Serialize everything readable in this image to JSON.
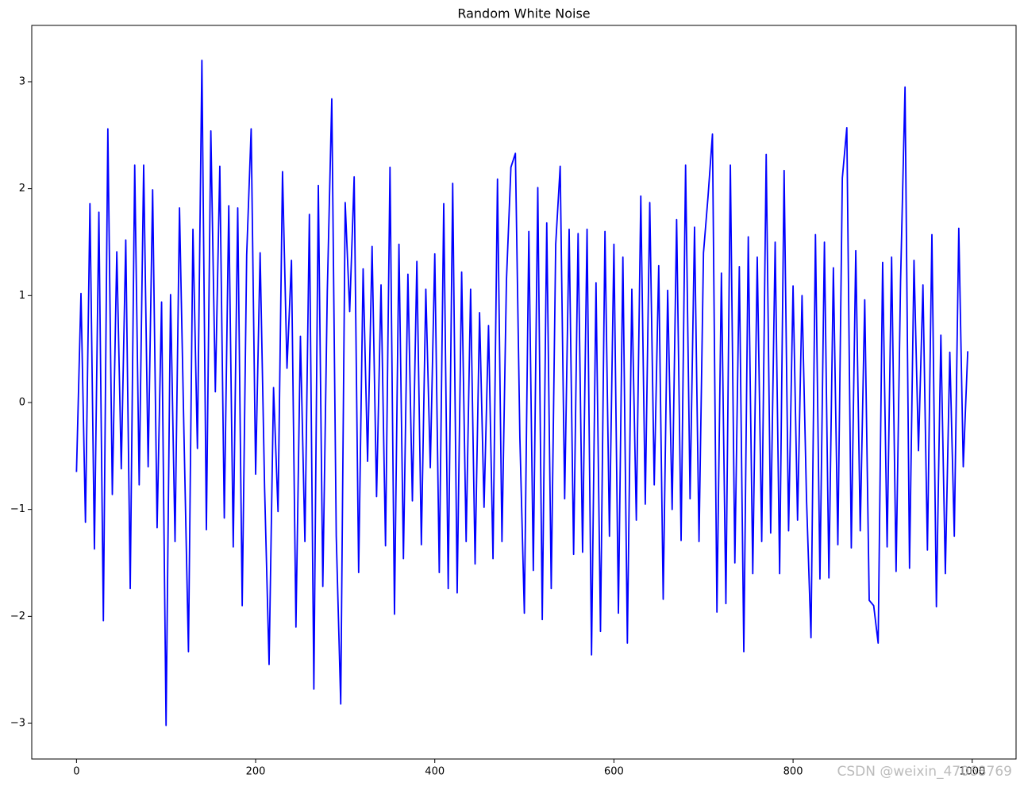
{
  "chart_data": {
    "type": "line",
    "title": "Random White Noise",
    "x": [
      0,
      5,
      10,
      15,
      20,
      25,
      30,
      35,
      40,
      45,
      50,
      55,
      60,
      65,
      70,
      75,
      80,
      85,
      90,
      95,
      100,
      105,
      110,
      115,
      120,
      125,
      130,
      135,
      140,
      145,
      150,
      155,
      160,
      165,
      170,
      175,
      180,
      185,
      190,
      195,
      200,
      205,
      210,
      215,
      220,
      225,
      230,
      235,
      240,
      245,
      250,
      255,
      260,
      265,
      270,
      275,
      280,
      285,
      290,
      295,
      300,
      305,
      310,
      315,
      320,
      325,
      330,
      335,
      340,
      345,
      350,
      355,
      360,
      365,
      370,
      375,
      380,
      385,
      390,
      395,
      400,
      405,
      410,
      415,
      420,
      425,
      430,
      435,
      440,
      445,
      450,
      455,
      460,
      465,
      470,
      475,
      480,
      485,
      490,
      495,
      500,
      505,
      510,
      515,
      520,
      525,
      530,
      535,
      540,
      545,
      550,
      555,
      560,
      565,
      570,
      575,
      580,
      585,
      590,
      595,
      600,
      605,
      610,
      615,
      620,
      625,
      630,
      635,
      640,
      645,
      650,
      655,
      660,
      665,
      670,
      675,
      680,
      685,
      690,
      695,
      700,
      705,
      710,
      715,
      720,
      725,
      730,
      735,
      740,
      745,
      750,
      755,
      760,
      765,
      770,
      775,
      780,
      785,
      790,
      795,
      800,
      805,
      810,
      815,
      820,
      825,
      830,
      835,
      840,
      845,
      850,
      855,
      860,
      865,
      870,
      875,
      880,
      885,
      890,
      895,
      900,
      905,
      910,
      915,
      920,
      925,
      930,
      935,
      940,
      945,
      950,
      955,
      960,
      965,
      970,
      975,
      980,
      985,
      990,
      995
    ],
    "values": [
      -0.65,
      1.02,
      -1.12,
      1.86,
      -1.37,
      1.78,
      -2.04,
      2.56,
      -0.86,
      1.41,
      -0.62,
      1.52,
      -1.74,
      2.22,
      -0.77,
      2.22,
      -0.6,
      1.99,
      -1.17,
      0.94,
      -3.02,
      1.01,
      -1.3,
      1.82,
      -0.3,
      -2.33,
      1.62,
      -0.43,
      3.2,
      -1.19,
      2.54,
      0.1,
      2.21,
      -1.08,
      1.84,
      -1.35,
      1.82,
      -1.9,
      1.38,
      2.56,
      -0.67,
      1.4,
      -0.8,
      -2.45,
      0.14,
      -1.02,
      2.16,
      0.32,
      1.33,
      -2.1,
      0.62,
      -1.3,
      1.76,
      -2.68,
      2.03,
      -1.72,
      1.04,
      2.84,
      -1.25,
      -2.82,
      1.87,
      0.85,
      2.11,
      -1.59,
      1.25,
      -0.55,
      1.46,
      -0.88,
      1.1,
      -1.34,
      2.2,
      -1.98,
      1.48,
      -1.46,
      1.2,
      -0.92,
      1.32,
      -1.33,
      1.06,
      -0.61,
      1.39,
      -1.59,
      1.86,
      -1.74,
      2.05,
      -1.78,
      1.22,
      -1.3,
      1.06,
      -1.51,
      0.84,
      -0.98,
      0.72,
      -1.46,
      2.09,
      -1.3,
      1.14,
      2.2,
      2.33,
      -0.33,
      -1.97,
      1.6,
      -1.57,
      2.01,
      -2.03,
      1.68,
      -1.74,
      1.48,
      2.21,
      -0.9,
      1.62,
      -1.42,
      1.58,
      -1.4,
      1.62,
      -2.36,
      1.12,
      -2.14,
      1.6,
      -1.25,
      1.48,
      -1.97,
      1.36,
      -2.25,
      1.06,
      -1.1,
      1.93,
      -0.95,
      1.87,
      -0.77,
      1.28,
      -1.84,
      1.05,
      -1.0,
      1.71,
      -1.29,
      2.22,
      -0.9,
      1.64,
      -1.3,
      1.4,
      1.92,
      2.51,
      -1.96,
      1.21,
      -1.88,
      2.22,
      -1.5,
      1.27,
      -2.33,
      1.55,
      -1.6,
      1.36,
      -1.3,
      2.32,
      -1.22,
      1.5,
      -1.6,
      2.17,
      -1.2,
      1.09,
      -1.1,
      1.0,
      -0.9,
      -2.2,
      1.57,
      -1.65,
      1.5,
      -1.64,
      1.26,
      -1.33,
      2.1,
      2.57,
      -1.36,
      1.42,
      -1.2,
      0.96,
      -1.85,
      -1.9,
      -2.25,
      1.31,
      -1.35,
      1.36,
      -1.58,
      1.13,
      2.95,
      -1.55,
      1.33,
      -0.45,
      1.1,
      -1.38,
      1.57,
      -1.91,
      0.63,
      -1.6,
      0.47,
      -1.25,
      1.63,
      -0.6,
      0.48
    ],
    "color": "#0000ff",
    "xlim": [
      -49.95,
      1048.95
    ],
    "ylim": [
      -3.334,
      3.527
    ],
    "xticks": [
      0,
      200,
      400,
      600,
      800,
      1000
    ],
    "yticks": [
      {
        "value": -3,
        "label": "−3"
      },
      {
        "value": -2,
        "label": "−2"
      },
      {
        "value": -1,
        "label": "−1"
      },
      0,
      1,
      2,
      3
    ],
    "grid": false,
    "watermark": "CSDN @weixin_47068769"
  }
}
